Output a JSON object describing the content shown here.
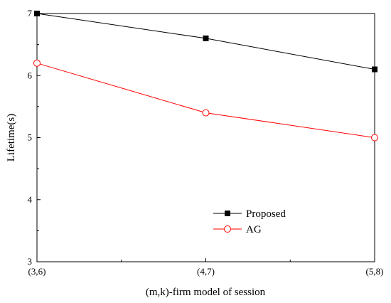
{
  "chart_data": {
    "type": "line",
    "categories": [
      "(3,6)",
      "(4,7)",
      "(5,8)"
    ],
    "xlabel": "(m,k)-firm model of session",
    "ylabel": "Lifetime(s)",
    "ylim": [
      3,
      7
    ],
    "yticks": [
      "3",
      "4",
      "5",
      "6",
      "7"
    ],
    "grid": false,
    "legend_position": "bottom-center",
    "series": [
      {
        "name": "Proposed",
        "values": [
          7.0,
          6.6,
          6.1
        ],
        "color": "#000000",
        "marker": "filled-square"
      },
      {
        "name": "AG",
        "values": [
          6.2,
          5.4,
          5.0
        ],
        "color": "#ff0000",
        "marker": "open-circle"
      }
    ]
  }
}
